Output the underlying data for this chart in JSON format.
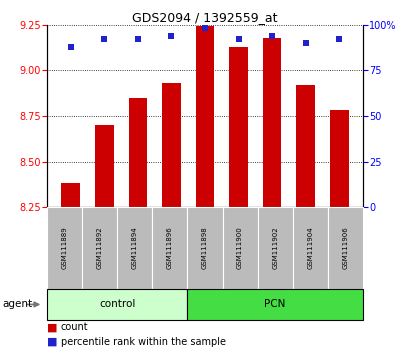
{
  "title": "GDS2094 / 1392559_at",
  "samples": [
    "GSM111889",
    "GSM111892",
    "GSM111894",
    "GSM111896",
    "GSM111898",
    "GSM111900",
    "GSM111902",
    "GSM111904",
    "GSM111906"
  ],
  "counts": [
    8.38,
    8.7,
    8.85,
    8.93,
    9.245,
    9.13,
    9.18,
    8.92,
    8.78
  ],
  "percentiles": [
    88,
    92,
    92,
    94,
    98,
    92,
    94,
    90,
    92
  ],
  "ylim": [
    8.25,
    9.25
  ],
  "yticks": [
    8.25,
    8.5,
    8.75,
    9.0,
    9.25
  ],
  "right_ylim": [
    0,
    100
  ],
  "right_yticks": [
    0,
    25,
    50,
    75,
    100
  ],
  "bar_color": "#CC0000",
  "dot_color": "#2222CC",
  "bar_width": 0.55,
  "groups": [
    {
      "name": "control",
      "indices": [
        0,
        1,
        2,
        3
      ],
      "color": "#CCFFCC"
    },
    {
      "name": "PCN",
      "indices": [
        4,
        5,
        6,
        7,
        8
      ],
      "color": "#44DD44"
    }
  ],
  "agent_label": "agent",
  "legend_count_label": "count",
  "legend_percentile_label": "percentile rank within the sample",
  "label_area_color": "#BBBBBB"
}
